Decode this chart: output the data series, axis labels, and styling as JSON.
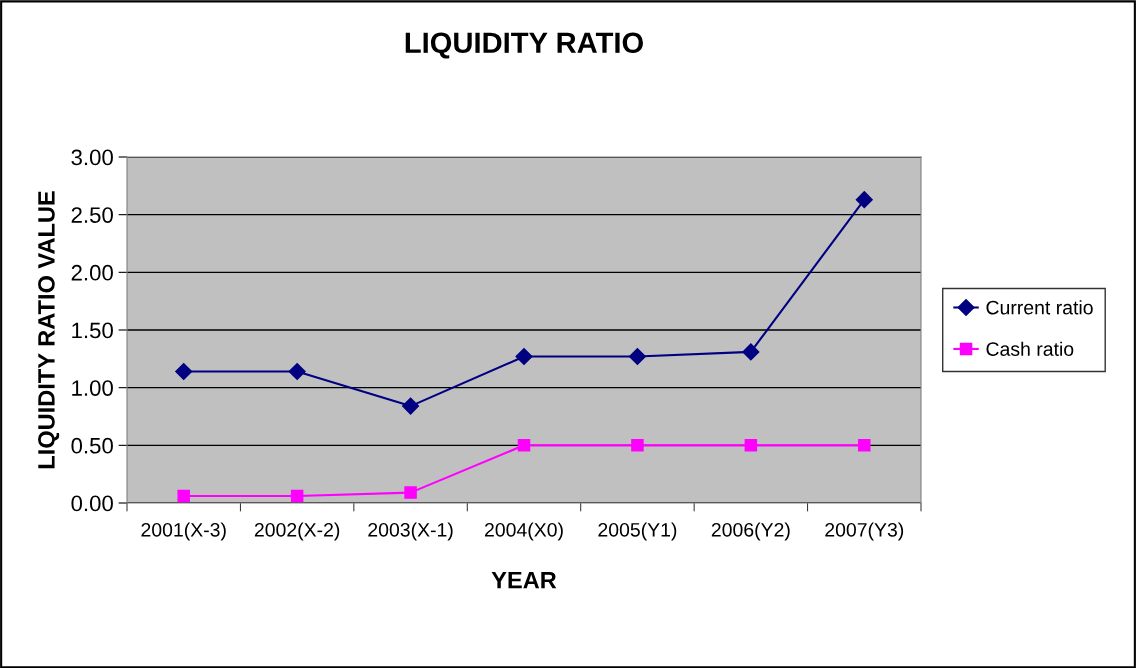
{
  "chart_data": {
    "type": "line",
    "title": "LIQUIDITY RATIO",
    "xlabel": "YEAR",
    "ylabel": "LIQUIDITY RATIO VALUE",
    "categories": [
      "2001(X-3)",
      "2002(X-2)",
      "2003(X-1)",
      "2004(X0)",
      "2005(Y1)",
      "2006(Y2)",
      "2007(Y3)"
    ],
    "series": [
      {
        "name": "Current ratio",
        "color": "#000080",
        "marker": "diamond",
        "values": [
          1.14,
          1.14,
          0.84,
          1.27,
          1.27,
          1.31,
          2.63
        ]
      },
      {
        "name": "Cash ratio",
        "color": "#ff00ff",
        "marker": "square",
        "values": [
          0.06,
          0.06,
          0.09,
          0.5,
          0.5,
          0.5,
          0.5
        ]
      }
    ],
    "ylim": [
      0,
      3
    ],
    "yticks": [
      {
        "value": 0,
        "label": "0.00"
      },
      {
        "value": 0.5,
        "label": "0.50"
      },
      {
        "value": 1,
        "label": "1.00"
      },
      {
        "value": 1.5,
        "label": "1.50"
      },
      {
        "value": 2,
        "label": "2.00"
      },
      {
        "value": 2.5,
        "label": "2.50"
      },
      {
        "value": 3,
        "label": "3.00"
      }
    ],
    "grid": "y",
    "legend": "right"
  }
}
